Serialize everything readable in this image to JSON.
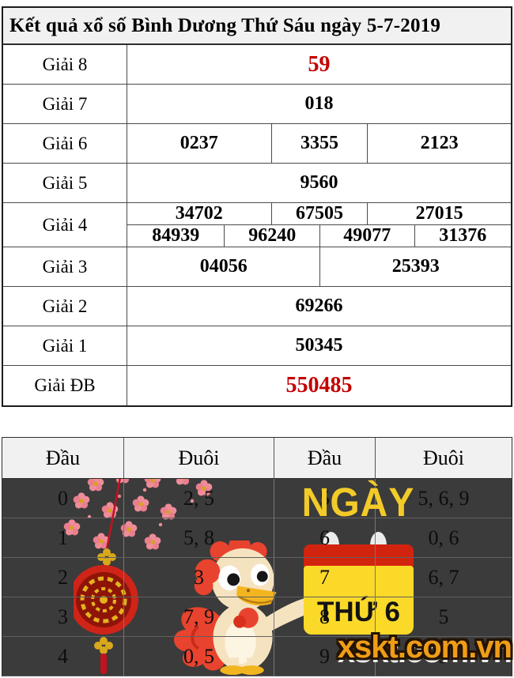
{
  "title": "Kết quả xổ số Bình Dương Thứ Sáu ngày 5-7-2019",
  "prize_table": {
    "rows": [
      {
        "label": "Giải 8",
        "red": true,
        "groups": [
          [
            "59"
          ]
        ]
      },
      {
        "label": "Giải 7",
        "red": false,
        "groups": [
          [
            "018"
          ]
        ]
      },
      {
        "label": "Giải 6",
        "red": false,
        "groups": [
          [
            "0237",
            "3355",
            "2123"
          ]
        ]
      },
      {
        "label": "Giải 5",
        "red": false,
        "groups": [
          [
            "9560"
          ]
        ]
      },
      {
        "label": "Giải 4",
        "red": false,
        "groups": [
          [
            "34702",
            "67505",
            "27015"
          ],
          [
            "84939",
            "96240",
            "49077",
            "31376"
          ]
        ]
      },
      {
        "label": "Giải 3",
        "red": false,
        "groups": [
          [
            "04056",
            "25393"
          ]
        ]
      },
      {
        "label": "Giải 2",
        "red": false,
        "groups": [
          [
            "69266"
          ]
        ]
      },
      {
        "label": "Giải 1",
        "red": false,
        "groups": [
          [
            "50345"
          ]
        ]
      },
      {
        "label": "Giải ĐB",
        "red": true,
        "groups": [
          [
            "550485"
          ]
        ]
      }
    ]
  },
  "head_tail_table": {
    "headers": [
      "Đầu",
      "Đuôi",
      "Đầu",
      "Đuôi"
    ],
    "rows": [
      [
        "0",
        "2, 5",
        "5",
        "5, 6, 9"
      ],
      [
        "1",
        "5, 8",
        "6",
        "0, 6"
      ],
      [
        "2",
        "3",
        "7",
        "6, 7"
      ],
      [
        "3",
        "7, 9",
        "8",
        "5"
      ],
      [
        "4",
        "0, 5",
        "9",
        "3"
      ]
    ]
  },
  "decorations": {
    "ngay_text": "NGÀY",
    "calendar_text": "THỨ 6",
    "logo_text": "xskt.com.vn"
  },
  "colors": {
    "accent_red": "#c40000",
    "header_bg": "#f1f1f1",
    "dark_bg": "#3b3b3b",
    "calendar_red": "#d2230f",
    "calendar_yellow": "#fbd929",
    "ngay_yellow": "#f3cb28",
    "logo_orange": "#ef9d17"
  }
}
